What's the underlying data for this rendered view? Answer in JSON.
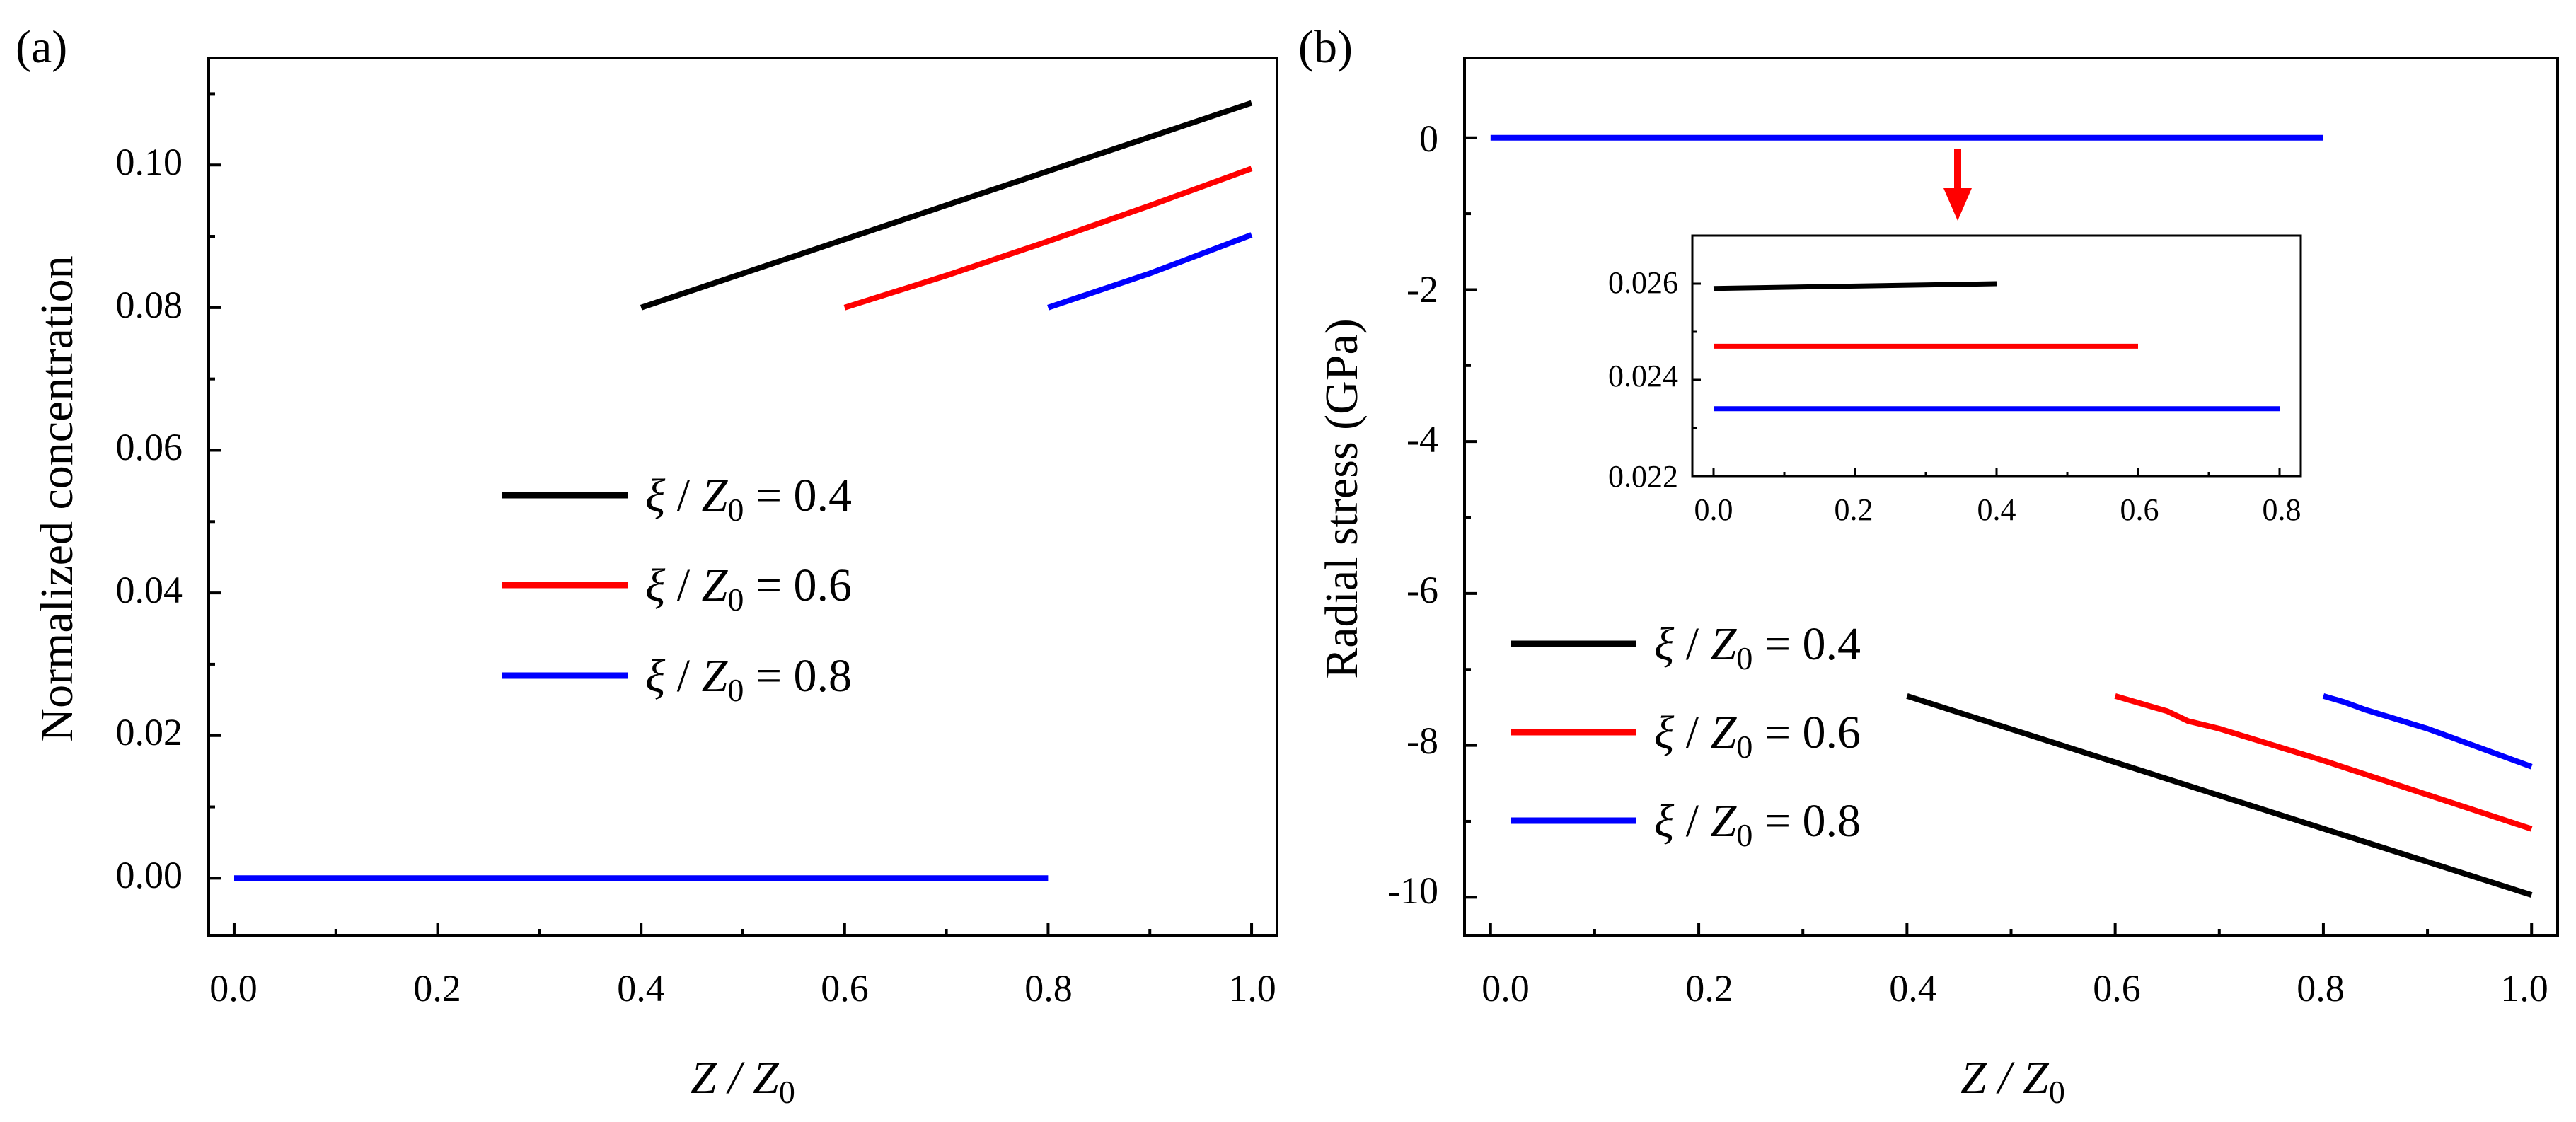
{
  "panels": [
    {
      "label": "(a)",
      "xlabel": "Z / Z0",
      "ylabel": "Normalized concentration",
      "xticks": [
        "0.0",
        "0.2",
        "0.4",
        "0.6",
        "0.8",
        "1.0"
      ],
      "yticks": [
        "0.00",
        "0.02",
        "0.04",
        "0.06",
        "0.08",
        "0.10"
      ],
      "legend": [
        "ξ / Z0 = 0.4",
        "ξ / Z0 = 0.6",
        "ξ / Z0 = 0.8"
      ]
    },
    {
      "label": "(b)",
      "xlabel": "Z / Z0",
      "ylabel": "Radial stress (GPa)",
      "xticks": [
        "0.0",
        "0.2",
        "0.4",
        "0.6",
        "0.8",
        "1.0"
      ],
      "yticks": [
        "0",
        "-2",
        "-4",
        "-6",
        "-8",
        "-10"
      ],
      "legend": [
        "ξ / Z0 = 0.4",
        "ξ / Z0 = 0.6",
        "ξ / Z0 = 0.8"
      ],
      "inset": {
        "xticks": [
          "0.0",
          "0.2",
          "0.4",
          "0.6",
          "0.8"
        ],
        "yticks": [
          "0.026",
          "0.024",
          "0.022"
        ]
      }
    }
  ],
  "chart_data": [
    {
      "type": "line",
      "xlabel": "Z / Z0",
      "ylabel": "Normalized concentration",
      "xlim": [
        -0.025,
        1.025
      ],
      "ylim": [
        -0.008,
        0.115
      ],
      "grid": false,
      "legend_position": "center",
      "series": [
        {
          "name": "ξ / Z0 = 0.4",
          "color": "#000000",
          "x": [
            0.4,
            1.0
          ],
          "y": [
            0.08,
            0.1087
          ]
        },
        {
          "name": "ξ / Z0 = 0.6",
          "color": "#ff0000",
          "x": [
            0.6,
            0.7,
            0.8,
            0.9,
            1.0
          ],
          "y": [
            0.08,
            0.0845,
            0.0893,
            0.0943,
            0.0995
          ]
        },
        {
          "name": "ξ / Z0 = 0.8",
          "color": "#0000ff",
          "x": [
            0.8,
            0.9,
            1.0
          ],
          "y": [
            0.08,
            0.0848,
            0.0902
          ]
        },
        {
          "name": "",
          "color": "#0000ff",
          "x": [
            0.0,
            0.8
          ],
          "y": [
            0.0,
            0.0
          ]
        }
      ]
    },
    {
      "type": "line",
      "xlabel": "Z / Z0",
      "ylabel": "Radial stress (GPa)",
      "xlim": [
        -0.025,
        1.025
      ],
      "ylim": [
        -10.5,
        1.05
      ],
      "grid": false,
      "legend_position": "lower-left",
      "series": [
        {
          "name": "ξ / Z0 = 0.4",
          "color": "#000000",
          "x": [
            0.4,
            1.0
          ],
          "y": [
            -7.35,
            -9.97
          ]
        },
        {
          "name": "ξ / Z0 = 0.6",
          "color": "#ff0000",
          "x": [
            0.6,
            0.65,
            0.67,
            0.7,
            0.8,
            0.9,
            1.0
          ],
          "y": [
            -7.35,
            -7.55,
            -7.68,
            -7.78,
            -8.2,
            -8.65,
            -9.1
          ]
        },
        {
          "name": "ξ / Z0 = 0.8",
          "color": "#0000ff",
          "x": [
            0.8,
            0.82,
            0.84,
            0.9,
            1.0
          ],
          "y": [
            -7.35,
            -7.43,
            -7.53,
            -7.78,
            -8.28
          ]
        },
        {
          "name": "",
          "color": "#0000ff",
          "x": [
            0.0,
            0.8
          ],
          "y": [
            0.0,
            0.0
          ]
        }
      ],
      "annotation": "red arrow pointing from the zero line to the inset",
      "inset": {
        "xlim": [
          -0.03,
          0.83
        ],
        "ylim": [
          0.022,
          0.027
        ],
        "series": [
          {
            "name": "ξ / Z0 = 0.4",
            "color": "#000000",
            "x": [
              0.0,
              0.4
            ],
            "y": [
              0.0259,
              0.026
            ]
          },
          {
            "name": "ξ / Z0 = 0.6",
            "color": "#ff0000",
            "x": [
              0.0,
              0.6
            ],
            "y": [
              0.0247,
              0.0247
            ]
          },
          {
            "name": "ξ / Z0 = 0.8",
            "color": "#0000ff",
            "x": [
              0.0,
              0.8
            ],
            "y": [
              0.0234,
              0.0234
            ]
          }
        ]
      }
    }
  ]
}
